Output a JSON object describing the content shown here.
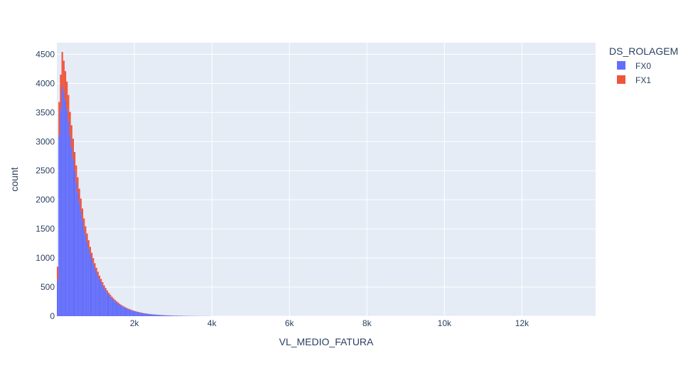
{
  "chart_data": {
    "type": "bar",
    "subtype": "stacked-histogram",
    "title": "",
    "xlabel": "VL_MEDIO_FATURA",
    "ylabel": "count",
    "xlim": [
      0,
      13900
    ],
    "ylim": [
      0,
      4700
    ],
    "xticks": [
      2000,
      4000,
      6000,
      8000,
      10000,
      12000
    ],
    "xtick_labels": [
      "2k",
      "4k",
      "6k",
      "8k",
      "10k",
      "12k"
    ],
    "yticks": [
      0,
      500,
      1000,
      1500,
      2000,
      2500,
      3000,
      3500,
      4000,
      4500
    ],
    "ytick_labels": [
      "0",
      "500",
      "1000",
      "1500",
      "2000",
      "2500",
      "3000",
      "3500",
      "4000",
      "4500"
    ],
    "grid": true,
    "barmode": "stack",
    "bin_start": 0,
    "bin_width": 40,
    "legend": {
      "title": "DS_ROLAGEM",
      "position": "top-right",
      "items": [
        {
          "name": "FX0",
          "color": "#636efa"
        },
        {
          "name": "FX1",
          "color": "#ef553b"
        }
      ]
    },
    "series": [
      {
        "name": "FX0",
        "color": "#636efa",
        "values": [
          620,
          3100,
          3550,
          3950,
          3850,
          3700,
          3550,
          3350,
          3100,
          2900,
          2700,
          2500,
          2300,
          2120,
          1950,
          1800,
          1650,
          1500,
          1380,
          1270,
          1170,
          1070,
          980,
          900,
          820,
          750,
          690,
          630,
          580,
          530,
          480,
          440,
          400,
          365,
          335,
          305,
          280,
          255,
          235,
          215,
          195,
          178,
          163,
          150,
          137,
          125,
          115,
          105,
          96,
          88,
          80,
          73,
          67,
          61,
          56,
          51,
          47,
          43,
          39,
          36,
          33,
          30,
          28,
          26,
          24,
          22,
          20,
          18,
          17,
          15,
          14,
          13,
          12,
          11,
          10,
          9,
          8,
          8,
          7,
          6,
          6,
          5,
          5,
          5,
          4,
          4,
          4,
          3,
          3,
          3,
          3,
          2,
          2,
          2,
          2,
          2,
          2,
          1,
          1,
          1
        ]
      },
      {
        "name": "FX1",
        "color": "#ef553b",
        "values": [
          230,
          580,
          600,
          590,
          540,
          510,
          480,
          450,
          410,
          380,
          350,
          320,
          290,
          265,
          240,
          220,
          200,
          180,
          165,
          150,
          135,
          122,
          110,
          100,
          90,
          82,
          74,
          67,
          61,
          55,
          50,
          45,
          41,
          37,
          34,
          31,
          28,
          25,
          23,
          21,
          19,
          17,
          15,
          14,
          13,
          12,
          11,
          10,
          9,
          8,
          7,
          7,
          6,
          6,
          5,
          5,
          4,
          4,
          4,
          3,
          3,
          3,
          3,
          2,
          2,
          2,
          2,
          2,
          2,
          1,
          1,
          1,
          1,
          1,
          1,
          1,
          1,
          1,
          1,
          1,
          1,
          0,
          0,
          0,
          0,
          0,
          0,
          0,
          0,
          0,
          0,
          0,
          0,
          0,
          0,
          0,
          0,
          0,
          0,
          0
        ]
      }
    ]
  }
}
